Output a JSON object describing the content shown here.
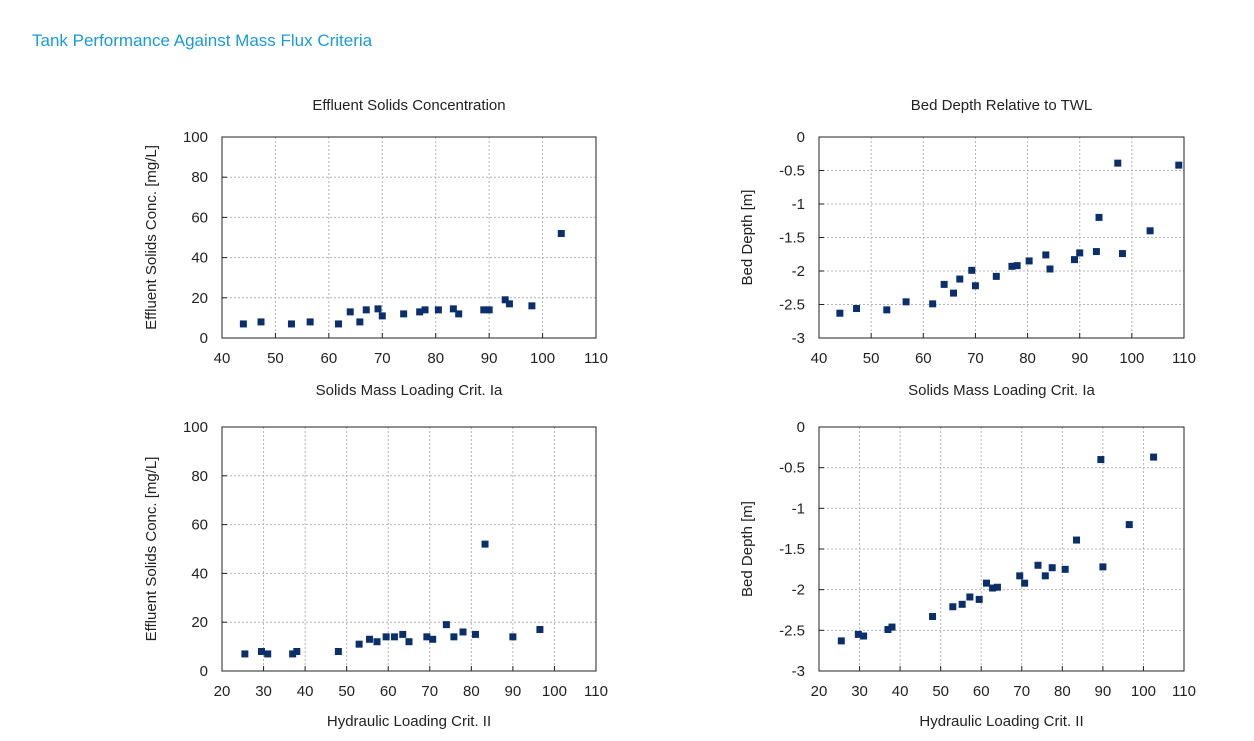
{
  "page": {
    "heading": "Tank Performance Against Mass Flux Criteria"
  },
  "colors": {
    "heading": "#1a9bd7",
    "marker": "#0b2f6b",
    "grid": "#b4b4b4",
    "axis": "#222222"
  },
  "chart_data": [
    {
      "type": "scatter",
      "title": "Effluent Solids Concentration",
      "xlabel": "Solids Mass Loading Crit. Ia",
      "ylabel": "Effluent Solids Conc. [mg/L]",
      "xlim": [
        40,
        110
      ],
      "ylim": [
        0,
        100
      ],
      "xticks": [
        "40",
        "50",
        "60",
        "70",
        "80",
        "90",
        "100",
        "110"
      ],
      "yticks": [
        "0",
        "20",
        "40",
        "60",
        "80",
        "100"
      ],
      "grid": true,
      "series": [
        {
          "points": [
            [
              44,
              7
            ],
            [
              47.3,
              8
            ],
            [
              53,
              7
            ],
            [
              56.5,
              8
            ],
            [
              61.8,
              7
            ],
            [
              64,
              13
            ],
            [
              65.8,
              8
            ],
            [
              67,
              14
            ],
            [
              69.2,
              14.5
            ],
            [
              70,
              11
            ],
            [
              74,
              12
            ],
            [
              77,
              13
            ],
            [
              78,
              14
            ],
            [
              80.5,
              14
            ],
            [
              83.3,
              14.5
            ],
            [
              84.3,
              12
            ],
            [
              89,
              14
            ],
            [
              90,
              14
            ],
            [
              93,
              19
            ],
            [
              93.8,
              17
            ],
            [
              98,
              16
            ],
            [
              103.5,
              52
            ]
          ]
        }
      ]
    },
    {
      "type": "scatter",
      "title": "Bed Depth Relative to TWL",
      "xlabel": "Solids Mass Loading Crit. Ia",
      "ylabel": "Bed Depth [m]",
      "xlim": [
        40,
        110
      ],
      "ylim": [
        -3,
        0
      ],
      "xticks": [
        "40",
        "50",
        "60",
        "70",
        "80",
        "90",
        "100",
        "110"
      ],
      "yticks": [
        "0",
        "-0.5",
        "-1",
        "-1.5",
        "-2",
        "-2.5",
        "-3"
      ],
      "grid": true,
      "series": [
        {
          "points": [
            [
              44,
              -2.63
            ],
            [
              47.2,
              -2.56
            ],
            [
              53,
              -2.58
            ],
            [
              56.7,
              -2.46
            ],
            [
              61.8,
              -2.49
            ],
            [
              64,
              -2.2
            ],
            [
              65.8,
              -2.33
            ],
            [
              67,
              -2.12
            ],
            [
              69.3,
              -1.99
            ],
            [
              70,
              -2.22
            ],
            [
              74,
              -2.08
            ],
            [
              77,
              -1.93
            ],
            [
              78,
              -1.92
            ],
            [
              80.3,
              -1.85
            ],
            [
              83.5,
              -1.76
            ],
            [
              84.3,
              -1.97
            ],
            [
              89,
              -1.83
            ],
            [
              90,
              -1.73
            ],
            [
              93.2,
              -1.71
            ],
            [
              93.7,
              -1.2
            ],
            [
              97.3,
              -0.39
            ],
            [
              98.2,
              -1.74
            ],
            [
              103.5,
              -1.4
            ],
            [
              109,
              -0.42
            ]
          ]
        }
      ]
    },
    {
      "type": "scatter",
      "title": "",
      "xlabel": "Hydraulic Loading Crit. II",
      "ylabel": "Effluent Solids Conc. [mg/L]",
      "xlim": [
        20,
        110
      ],
      "ylim": [
        0,
        100
      ],
      "xticks": [
        "20",
        "30",
        "40",
        "50",
        "60",
        "70",
        "80",
        "90",
        "100",
        "110"
      ],
      "yticks": [
        "0",
        "20",
        "40",
        "60",
        "80",
        "100"
      ],
      "grid": true,
      "series": [
        {
          "points": [
            [
              25.5,
              7
            ],
            [
              29.5,
              8
            ],
            [
              31,
              7
            ],
            [
              37,
              7
            ],
            [
              38,
              8
            ],
            [
              48,
              8
            ],
            [
              53,
              11
            ],
            [
              55.5,
              13
            ],
            [
              57.3,
              12
            ],
            [
              59.5,
              14
            ],
            [
              61.5,
              14
            ],
            [
              63.5,
              15
            ],
            [
              65,
              12
            ],
            [
              69.3,
              14
            ],
            [
              70.7,
              13
            ],
            [
              74,
              19
            ],
            [
              75.8,
              14
            ],
            [
              78,
              16
            ],
            [
              81,
              15
            ],
            [
              83.3,
              52
            ],
            [
              90,
              14
            ],
            [
              96.5,
              17
            ]
          ]
        }
      ]
    },
    {
      "type": "scatter",
      "title": "",
      "xlabel": "Hydraulic Loading Crit. II",
      "ylabel": "Bed Depth [m]",
      "xlim": [
        20,
        110
      ],
      "ylim": [
        -3,
        0
      ],
      "xticks": [
        "20",
        "30",
        "40",
        "50",
        "60",
        "70",
        "80",
        "90",
        "100",
        "110"
      ],
      "yticks": [
        "0",
        "-0.5",
        "-1",
        "-1.5",
        "-2",
        "-2.5",
        "-3"
      ],
      "grid": true,
      "series": [
        {
          "points": [
            [
              25.5,
              -2.63
            ],
            [
              29.7,
              -2.55
            ],
            [
              31,
              -2.57
            ],
            [
              37,
              -2.49
            ],
            [
              38,
              -2.46
            ],
            [
              48,
              -2.33
            ],
            [
              53,
              -2.21
            ],
            [
              55.3,
              -2.18
            ],
            [
              57.2,
              -2.09
            ],
            [
              59.5,
              -2.12
            ],
            [
              61.3,
              -1.92
            ],
            [
              62.8,
              -1.98
            ],
            [
              64,
              -1.97
            ],
            [
              69.5,
              -1.83
            ],
            [
              70.7,
              -1.92
            ],
            [
              74,
              -1.7
            ],
            [
              75.8,
              -1.83
            ],
            [
              77.5,
              -1.73
            ],
            [
              80.7,
              -1.75
            ],
            [
              83.5,
              -1.39
            ],
            [
              89.5,
              -0.4
            ],
            [
              90,
              -1.72
            ],
            [
              96.5,
              -1.2
            ],
            [
              102.5,
              -0.37
            ]
          ]
        }
      ]
    }
  ]
}
